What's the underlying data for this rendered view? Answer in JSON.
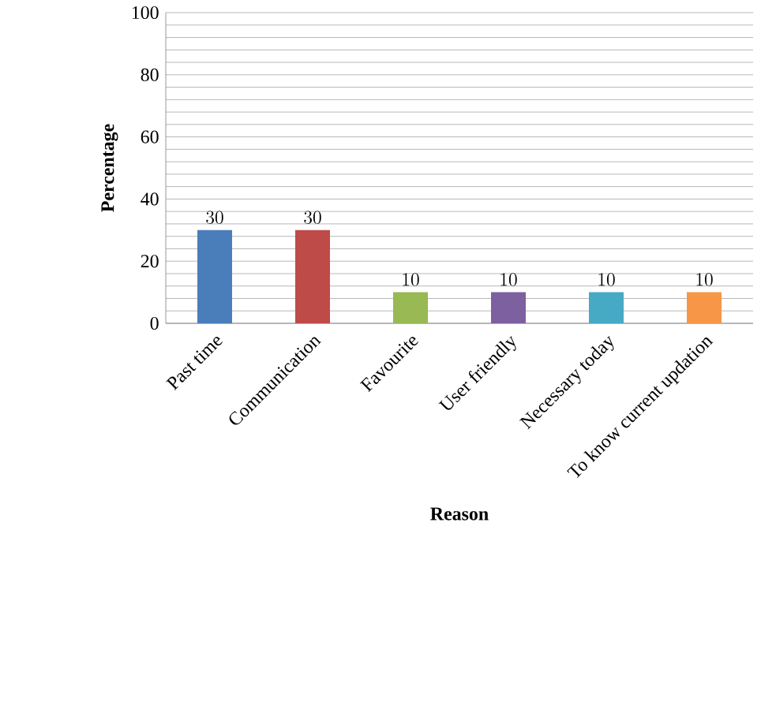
{
  "chart_data": {
    "type": "bar",
    "xlabel": "Reason",
    "ylabel": "Percentage",
    "categories": [
      "Past time",
      "Communication",
      "Favourite",
      "User friendly",
      "Necessary today",
      "To know current updation"
    ],
    "values": [
      30,
      30,
      10,
      10,
      10,
      10
    ],
    "colors": [
      "#4a7ebb",
      "#be4b48",
      "#98b954",
      "#7d60a0",
      "#46aac5",
      "#f79646"
    ],
    "ylim": [
      0,
      100
    ],
    "yticks": [
      0,
      20,
      40,
      60,
      80,
      100
    ],
    "grid": "y",
    "data_labels": true
  }
}
